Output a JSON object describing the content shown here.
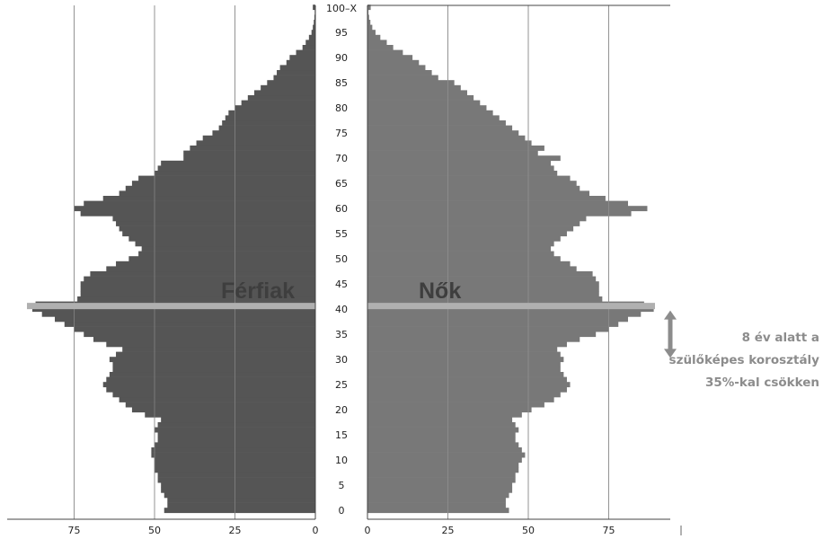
{
  "chart_data": {
    "type": "bar",
    "orientation": "horizontal",
    "series": [
      {
        "name": "Férfiak",
        "side": "left",
        "color": "#555555",
        "values": [
          47,
          46,
          46,
          47,
          48,
          48,
          49,
          49,
          50,
          50,
          50,
          51,
          51,
          50,
          49,
          49,
          50,
          49,
          48,
          53,
          57,
          59,
          61,
          63,
          65,
          66,
          65,
          64,
          63,
          63,
          64,
          62,
          60,
          65,
          69,
          72,
          75,
          78,
          81,
          85,
          88,
          87,
          74,
          73,
          73,
          73,
          72,
          70,
          65,
          62,
          58,
          55,
          54,
          56,
          58,
          60,
          61,
          62,
          63,
          73,
          75,
          72,
          66,
          61,
          59,
          57,
          55,
          50,
          49,
          48,
          41,
          41,
          39,
          37,
          35,
          32,
          30,
          29,
          28,
          27,
          25,
          23,
          21,
          19,
          17,
          15,
          13,
          12,
          11,
          9,
          8,
          6,
          4,
          3,
          2,
          1.2,
          0.8,
          0.5,
          0.3,
          0.2,
          0.8
        ]
      },
      {
        "name": "Nők",
        "side": "right",
        "color": "#787878",
        "values": [
          44,
          43,
          43,
          44,
          45,
          45,
          46,
          46,
          47,
          47,
          48,
          49,
          48,
          47,
          46,
          46,
          47,
          46,
          45,
          48,
          51,
          55,
          58,
          60,
          62,
          63,
          62,
          61,
          60,
          60,
          61,
          60,
          59,
          62,
          66,
          71,
          75,
          78,
          81,
          85,
          89,
          86,
          73,
          72,
          72,
          72,
          71,
          70,
          65,
          63,
          60,
          58,
          57,
          58,
          60,
          62,
          64,
          66,
          68,
          82,
          87,
          81,
          74,
          69,
          66,
          65,
          63,
          59,
          58,
          57,
          60,
          53,
          55,
          51,
          49,
          47,
          45,
          43,
          41,
          39,
          37,
          35,
          33,
          31,
          29,
          27,
          22,
          20,
          18,
          16,
          14,
          11,
          8,
          6,
          4,
          2.5,
          1.5,
          0.9,
          0.5,
          0.3,
          1
        ]
      }
    ],
    "ages": [
      0,
      1,
      2,
      3,
      4,
      5,
      6,
      7,
      8,
      9,
      10,
      11,
      12,
      13,
      14,
      15,
      16,
      17,
      18,
      19,
      20,
      21,
      22,
      23,
      24,
      25,
      26,
      27,
      28,
      29,
      30,
      31,
      32,
      33,
      34,
      35,
      36,
      37,
      38,
      39,
      40,
      41,
      42,
      43,
      44,
      45,
      46,
      47,
      48,
      49,
      50,
      51,
      52,
      53,
      54,
      55,
      56,
      57,
      58,
      59,
      60,
      61,
      62,
      63,
      64,
      65,
      66,
      67,
      68,
      69,
      70,
      71,
      72,
      73,
      74,
      75,
      76,
      77,
      78,
      79,
      80,
      81,
      82,
      83,
      84,
      85,
      86,
      87,
      88,
      89,
      90,
      91,
      92,
      93,
      94,
      95,
      96,
      97,
      98,
      99,
      100
    ],
    "age_tick_labels": [
      "0",
      "5",
      "10",
      "15",
      "20",
      "25",
      "30",
      "35",
      "40",
      "45",
      "50",
      "55",
      "60",
      "65",
      "70",
      "75",
      "80",
      "85",
      "90",
      "95",
      "100–X"
    ],
    "x_tick_labels": [
      "75",
      "50",
      "25",
      "0"
    ],
    "x_axis_min": 0,
    "x_axis_max": 100,
    "grid": "vertical",
    "highlight_age": 41,
    "highlight_color": "#b0b0b0",
    "side_labels": [
      "Férfiak",
      "Nők"
    ],
    "annotation": {
      "lines": [
        "8 év alatt a",
        "szülőképes korosztály",
        "35%-kal csökken"
      ],
      "arrow_from_age": 39,
      "arrow_to_age": 31,
      "color": "#8c8c8c"
    }
  }
}
